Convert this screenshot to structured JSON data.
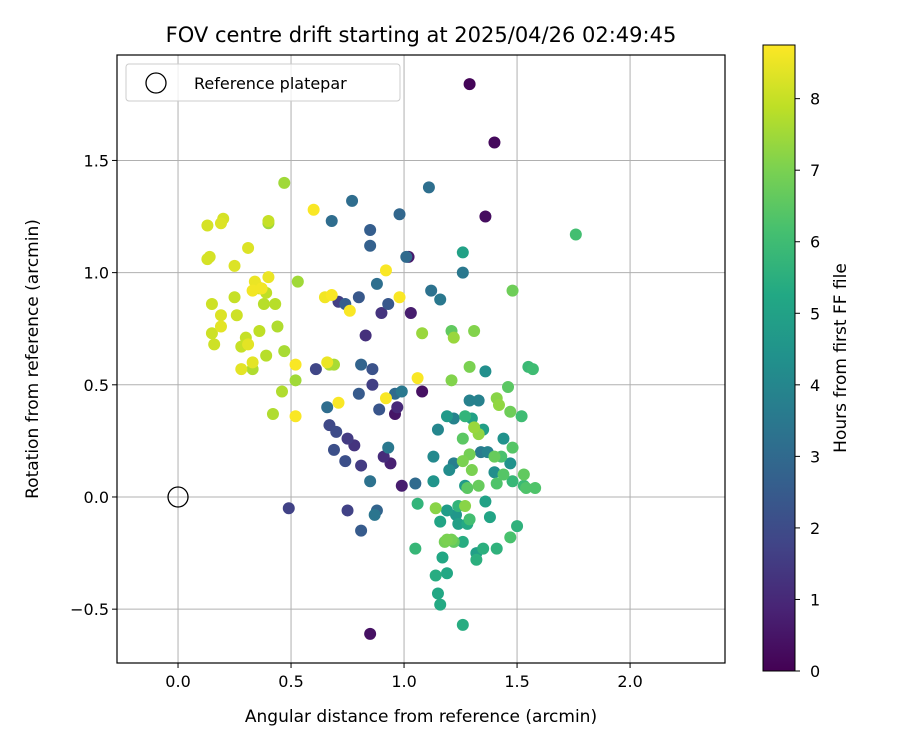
{
  "chart_data": {
    "type": "scatter",
    "title": "FOV centre drift starting at 2025/04/26 02:49:45",
    "xlabel": "Angular distance from reference (arcmin)",
    "ylabel": "Rotation from reference (arcmin)",
    "xlim": [
      -0.27,
      2.42
    ],
    "ylim": [
      -0.74,
      1.97
    ],
    "x_ticks": [
      0.0,
      0.5,
      1.0,
      1.5,
      2.0
    ],
    "x_tick_labels": [
      "0.0",
      "0.5",
      "1.0",
      "1.5",
      "2.0"
    ],
    "y_ticks": [
      -0.5,
      0.0,
      0.5,
      1.0,
      1.5
    ],
    "y_tick_labels": [
      "−0.5",
      "0.0",
      "0.5",
      "1.0",
      "1.5"
    ],
    "grid": true,
    "colormap": "viridis",
    "colorbar": {
      "label": "Hours from first FF file",
      "range": [
        0,
        8.75
      ],
      "ticks": [
        0,
        1,
        2,
        3,
        4,
        5,
        6,
        7,
        8
      ],
      "tick_labels": [
        "0",
        "1",
        "2",
        "3",
        "4",
        "5",
        "6",
        "7",
        "8"
      ]
    },
    "reference": {
      "x": 0.0,
      "y": 0.0,
      "label": "Reference platepar"
    },
    "legend": {
      "position": "upper-left",
      "entries": [
        "Reference platepar"
      ]
    },
    "points": [
      [
        1.29,
        1.84,
        0.1
      ],
      [
        1.4,
        1.58,
        0.2
      ],
      [
        1.36,
        1.25,
        0.3
      ],
      [
        1.02,
        1.07,
        0.6
      ],
      [
        1.03,
        0.82,
        0.7
      ],
      [
        1.08,
        0.47,
        0.4
      ],
      [
        0.96,
        0.37,
        0.5
      ],
      [
        0.94,
        0.15,
        0.8
      ],
      [
        0.99,
        0.05,
        0.7
      ],
      [
        0.85,
        -0.61,
        0.4
      ],
      [
        0.97,
        0.4,
        1.0
      ],
      [
        0.91,
        0.18,
        1.1
      ],
      [
        0.83,
        0.72,
        1.2
      ],
      [
        0.9,
        0.82,
        1.3
      ],
      [
        0.78,
        0.23,
        1.3
      ],
      [
        0.75,
        0.26,
        1.5
      ],
      [
        0.81,
        0.14,
        1.5
      ],
      [
        0.71,
        0.87,
        1.6
      ],
      [
        0.86,
        0.5,
        1.6
      ],
      [
        0.75,
        -0.06,
        1.7
      ],
      [
        0.49,
        -0.05,
        1.7
      ],
      [
        0.61,
        0.57,
        1.8
      ],
      [
        0.67,
        0.32,
        1.9
      ],
      [
        0.7,
        0.29,
        2.0
      ],
      [
        0.74,
        0.16,
        2.1
      ],
      [
        0.69,
        0.21,
        2.1
      ],
      [
        0.86,
        0.57,
        2.2
      ],
      [
        0.89,
        0.39,
        2.3
      ],
      [
        0.93,
        0.86,
        2.4
      ],
      [
        0.8,
        0.89,
        2.4
      ],
      [
        0.8,
        0.46,
        2.5
      ],
      [
        0.81,
        -0.15,
        2.5
      ],
      [
        0.74,
        0.86,
        2.6
      ],
      [
        0.85,
        1.19,
        2.6
      ],
      [
        0.85,
        1.12,
        2.7
      ],
      [
        0.81,
        0.59,
        2.8
      ],
      [
        0.88,
        -0.06,
        2.8
      ],
      [
        0.96,
        0.46,
        3.0
      ],
      [
        0.98,
        1.26,
        2.9
      ],
      [
        1.01,
        1.07,
        3.0
      ],
      [
        1.05,
        0.06,
        3.0
      ],
      [
        0.66,
        0.4,
        3.1
      ],
      [
        0.77,
        1.32,
        3.1
      ],
      [
        0.68,
        1.23,
        3.1
      ],
      [
        0.88,
        0.95,
        3.2
      ],
      [
        1.11,
        1.38,
        3.2
      ],
      [
        1.12,
        0.92,
        3.3
      ],
      [
        0.85,
        0.07,
        3.3
      ],
      [
        0.87,
        -0.08,
        3.4
      ],
      [
        0.93,
        0.22,
        3.5
      ],
      [
        0.99,
        0.47,
        3.5
      ],
      [
        1.16,
        0.88,
        3.5
      ],
      [
        1.26,
        1.0,
        3.5
      ],
      [
        1.34,
        0.2,
        3.6
      ],
      [
        1.22,
        0.15,
        3.7
      ],
      [
        1.29,
        0.43,
        3.8
      ],
      [
        1.33,
        0.43,
        3.8
      ],
      [
        1.22,
        0.35,
        3.9
      ],
      [
        1.37,
        0.2,
        3.9
      ],
      [
        1.15,
        0.3,
        4.0
      ],
      [
        1.13,
        0.18,
        4.1
      ],
      [
        1.2,
        0.12,
        4.2
      ],
      [
        1.36,
        0.56,
        4.3
      ],
      [
        1.4,
        0.11,
        4.3
      ],
      [
        1.44,
        0.26,
        4.4
      ],
      [
        1.47,
        0.15,
        4.4
      ],
      [
        1.13,
        0.07,
        4.5
      ],
      [
        1.23,
        -0.08,
        4.6
      ],
      [
        1.19,
        0.36,
        4.7
      ],
      [
        1.27,
        0.05,
        4.7
      ],
      [
        1.19,
        -0.06,
        4.8
      ],
      [
        1.24,
        -0.12,
        4.9
      ],
      [
        1.35,
        0.3,
        4.9
      ],
      [
        1.32,
        -0.25,
        4.9
      ],
      [
        1.36,
        -0.02,
        5.0
      ],
      [
        1.3,
        0.35,
        5.0
      ],
      [
        1.26,
        1.09,
        5.0
      ],
      [
        1.38,
        -0.09,
        5.1
      ],
      [
        1.16,
        -0.11,
        5.1
      ],
      [
        1.17,
        -0.27,
        5.2
      ],
      [
        1.19,
        -0.34,
        5.2
      ],
      [
        1.15,
        -0.43,
        5.2
      ],
      [
        1.16,
        -0.48,
        5.3
      ],
      [
        1.28,
        -0.12,
        5.3
      ],
      [
        1.26,
        -0.2,
        5.4
      ],
      [
        1.14,
        -0.35,
        5.4
      ],
      [
        1.26,
        -0.57,
        5.4
      ],
      [
        1.32,
        -0.28,
        5.5
      ],
      [
        1.35,
        -0.23,
        5.5
      ],
      [
        1.41,
        -0.23,
        5.6
      ],
      [
        1.5,
        -0.13,
        5.6
      ],
      [
        1.24,
        -0.04,
        5.7
      ],
      [
        1.27,
        0.36,
        5.7
      ],
      [
        1.06,
        -0.03,
        5.7
      ],
      [
        1.05,
        -0.23,
        5.8
      ],
      [
        1.48,
        0.07,
        5.8
      ],
      [
        1.53,
        0.05,
        5.9
      ],
      [
        1.55,
        0.58,
        5.9
      ],
      [
        1.57,
        0.57,
        6.0
      ],
      [
        1.52,
        0.36,
        6.0
      ],
      [
        1.29,
        -0.1,
        6.1
      ],
      [
        1.76,
        1.17,
        6.1
      ],
      [
        1.47,
        -0.18,
        6.2
      ],
      [
        1.43,
        0.18,
        6.2
      ],
      [
        1.54,
        0.04,
        6.3
      ],
      [
        1.41,
        0.06,
        6.3
      ],
      [
        1.58,
        0.04,
        6.3
      ],
      [
        1.48,
        0.22,
        6.4
      ],
      [
        1.44,
        0.1,
        6.4
      ],
      [
        1.28,
        0.04,
        6.5
      ],
      [
        1.26,
        0.26,
        6.5
      ],
      [
        1.21,
        0.74,
        6.6
      ],
      [
        1.22,
        -0.2,
        6.6
      ],
      [
        1.53,
        0.1,
        6.6
      ],
      [
        1.33,
        0.05,
        6.7
      ],
      [
        1.4,
        0.18,
        6.7
      ],
      [
        1.46,
        0.49,
        6.5
      ],
      [
        1.47,
        0.38,
        6.8
      ],
      [
        1.48,
        0.92,
        6.8
      ],
      [
        1.29,
        0.19,
        6.9
      ],
      [
        1.21,
        -0.19,
        6.9
      ],
      [
        1.18,
        -0.2,
        6.9
      ],
      [
        1.19,
        -0.19,
        7.0
      ],
      [
        1.3,
        0.12,
        7.0
      ],
      [
        1.26,
        0.16,
        7.0
      ],
      [
        1.21,
        0.52,
        7.1
      ],
      [
        1.31,
        0.74,
        7.1
      ],
      [
        1.29,
        0.58,
        7.0
      ],
      [
        1.14,
        -0.05,
        7.2
      ],
      [
        1.27,
        -0.04,
        7.2
      ],
      [
        1.41,
        0.44,
        7.2
      ],
      [
        1.42,
        0.41,
        7.3
      ],
      [
        1.33,
        0.28,
        7.3
      ],
      [
        1.31,
        0.31,
        7.4
      ],
      [
        1.08,
        0.73,
        7.4
      ],
      [
        1.22,
        0.71,
        7.4
      ],
      [
        0.4,
        1.22,
        7.5
      ],
      [
        0.47,
        1.4,
        7.5
      ],
      [
        0.53,
        0.96,
        7.5
      ],
      [
        0.52,
        0.52,
        7.5
      ],
      [
        0.67,
        0.59,
        7.6
      ],
      [
        0.69,
        0.59,
        7.6
      ],
      [
        0.47,
        0.65,
        7.6
      ],
      [
        0.44,
        0.76,
        7.7
      ],
      [
        0.42,
        0.37,
        7.7
      ],
      [
        0.46,
        0.47,
        7.7
      ],
      [
        0.33,
        0.57,
        7.7
      ],
      [
        0.39,
        0.63,
        7.8
      ],
      [
        0.38,
        0.86,
        7.8
      ],
      [
        0.43,
        0.86,
        7.8
      ],
      [
        0.39,
        0.91,
        7.9
      ],
      [
        0.36,
        0.93,
        7.9
      ],
      [
        0.36,
        0.74,
        7.9
      ],
      [
        0.3,
        0.71,
        8.0
      ],
      [
        0.28,
        0.67,
        8.0
      ],
      [
        0.25,
        0.89,
        8.0
      ],
      [
        0.26,
        0.81,
        8.1
      ],
      [
        0.15,
        0.73,
        8.1
      ],
      [
        0.16,
        0.68,
        8.1
      ],
      [
        0.15,
        0.86,
        8.1
      ],
      [
        0.14,
        1.07,
        8.2
      ],
      [
        0.13,
        1.06,
        8.2
      ],
      [
        0.13,
        1.21,
        8.2
      ],
      [
        0.2,
        1.24,
        8.2
      ],
      [
        0.19,
        1.22,
        8.3
      ],
      [
        0.31,
        1.11,
        8.3
      ],
      [
        0.25,
        1.03,
        8.3
      ],
      [
        0.19,
        0.81,
        8.3
      ],
      [
        0.19,
        0.76,
        8.4
      ],
      [
        0.28,
        0.57,
        8.4
      ],
      [
        0.31,
        0.68,
        8.4
      ],
      [
        0.33,
        0.6,
        8.4
      ],
      [
        0.34,
        0.96,
        8.5
      ],
      [
        0.35,
        0.94,
        8.5
      ],
      [
        0.4,
        0.98,
        8.5
      ],
      [
        0.4,
        1.23,
        8.0
      ],
      [
        0.33,
        0.92,
        8.6
      ],
      [
        0.65,
        0.89,
        8.6
      ],
      [
        0.68,
        0.9,
        8.7
      ],
      [
        0.76,
        0.83,
        8.7
      ],
      [
        0.71,
        0.42,
        8.7
      ],
      [
        0.52,
        0.59,
        8.7
      ],
      [
        0.52,
        0.36,
        8.7
      ],
      [
        0.92,
        1.01,
        8.7
      ],
      [
        0.98,
        0.89,
        8.7
      ],
      [
        1.06,
        0.53,
        8.7
      ],
      [
        0.92,
        0.44,
        8.7
      ],
      [
        0.6,
        1.28,
        8.7
      ],
      [
        0.66,
        0.6,
        8.5
      ],
      [
        0.37,
        0.93,
        8.6
      ]
    ]
  }
}
